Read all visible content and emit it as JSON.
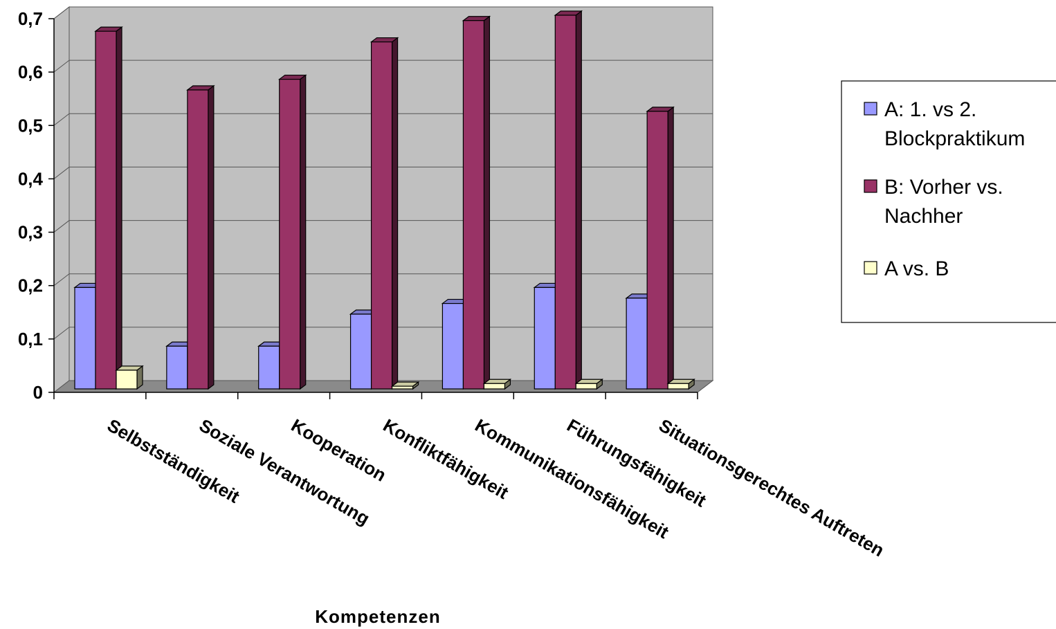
{
  "chart_data": {
    "type": "bar",
    "xlabel": "Kompetenzen",
    "ylabel": "",
    "ylim": [
      0,
      0.7
    ],
    "yticks": [
      "0",
      "0,1",
      "0,2",
      "0,3",
      "0,4",
      "0,5",
      "0,6",
      "0,7"
    ],
    "categories": [
      "Selbstständigkeit",
      "Soziale Verantwortung",
      "Kooperation",
      "Konfliktfähigkeit",
      "Kommunikationsfähigkeit",
      "Führungsfähigkeit",
      "Situationsgerechtes Auftreten"
    ],
    "series": [
      {
        "name": "A: 1. vs 2. Blockpraktikum",
        "legend_lines": [
          "A: 1. vs 2.",
          "Blockpraktikum"
        ],
        "color": "#9999ff",
        "values": [
          0.19,
          0.08,
          0.08,
          0.14,
          0.16,
          0.19,
          0.17
        ]
      },
      {
        "name": "B: Vorher vs. Nachher",
        "legend_lines": [
          "B: Vorher vs.",
          "Nachher"
        ],
        "color": "#993366",
        "values": [
          0.67,
          0.56,
          0.58,
          0.65,
          0.69,
          0.7,
          0.52
        ]
      },
      {
        "name": "A vs. B",
        "legend_lines": [
          "A vs. B"
        ],
        "color": "#ffffcc",
        "values": [
          0.035,
          0,
          0,
          0.005,
          0.01,
          0.01,
          0.01
        ]
      }
    ],
    "grid": true,
    "legend_position": "right"
  }
}
